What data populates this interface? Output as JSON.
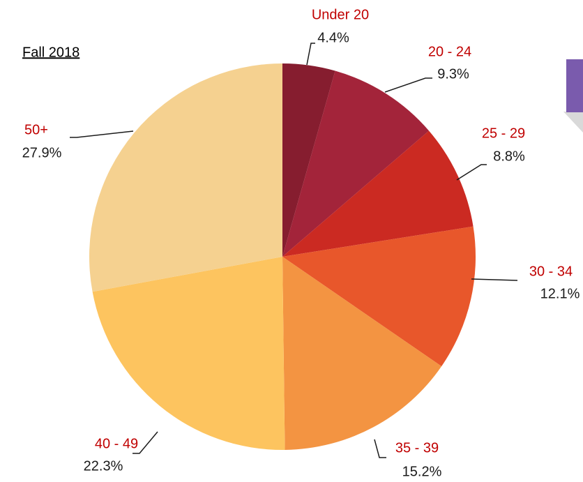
{
  "chart_data": {
    "type": "pie",
    "title": "Fall 2018",
    "categories": [
      "Under 20",
      "20 - 24",
      "25 - 29",
      "30 - 34",
      "35 - 39",
      "40 - 49",
      "50+"
    ],
    "values": [
      4.4,
      9.3,
      8.8,
      12.1,
      15.2,
      22.3,
      27.9
    ],
    "value_labels": [
      "4.4%",
      "9.3%",
      "8.8%",
      "12.1%",
      "15.2%",
      "22.3%",
      "27.9%"
    ],
    "colors": [
      "#861d2f",
      "#a3243a",
      "#cb2a22",
      "#e8572b",
      "#f39442",
      "#fdc45f",
      "#f5d190"
    ]
  }
}
